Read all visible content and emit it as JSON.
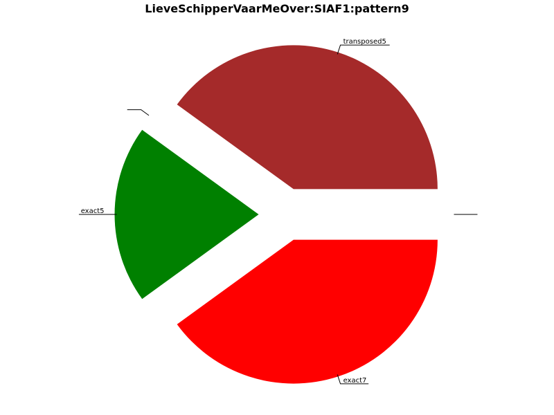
{
  "chart_data": {
    "type": "pie",
    "title": "LieveSchipperVaarMeOver:SIAF1:pattern9",
    "start_angle_deg": 0,
    "direction": "counterclockwise",
    "slices": [
      {
        "label": "",
        "value": 0,
        "color": "#ffffff"
      },
      {
        "label": "transposed5",
        "value": 40,
        "color": "#a52a2a"
      },
      {
        "label": "",
        "value": 0,
        "color": "#ffffff"
      },
      {
        "label": "exact5",
        "value": 20,
        "color": "#008000"
      },
      {
        "label": "exact7",
        "value": 40,
        "color": "#ff0000"
      }
    ]
  }
}
